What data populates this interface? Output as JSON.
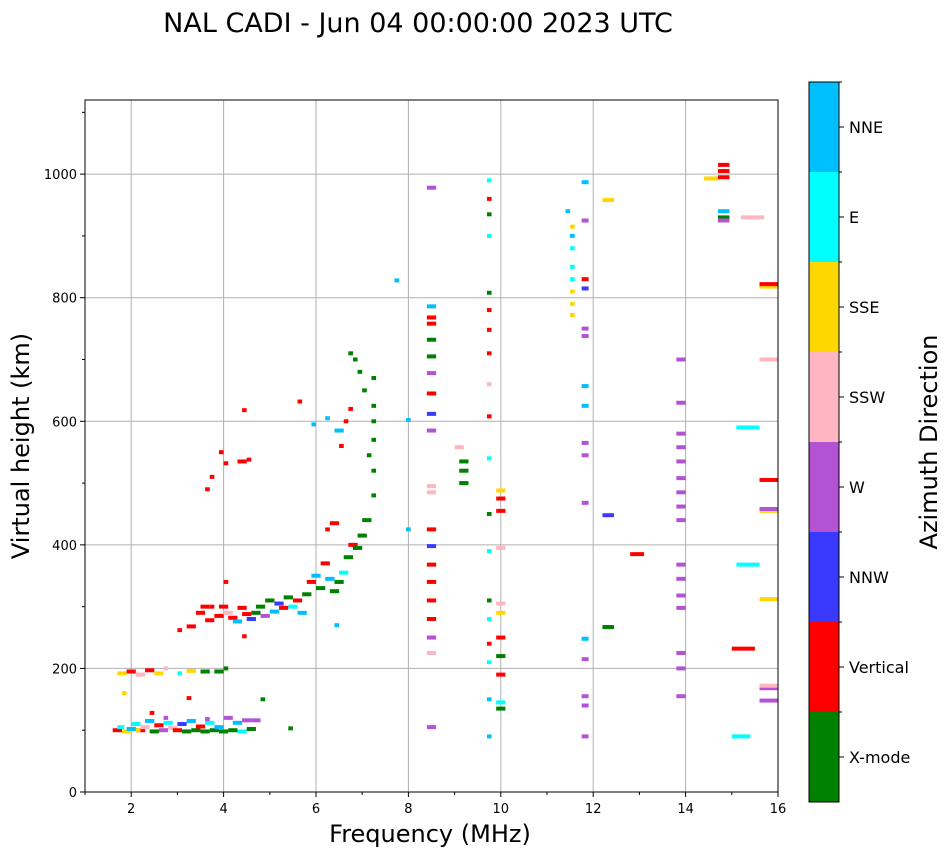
{
  "chart_data": {
    "type": "scatter",
    "title": "NAL CADI - Jun 04 00:00:00 2023 UTC",
    "xlabel": "Frequency (MHz)",
    "ylabel": "Virtual height (km)",
    "xlim": [
      1,
      16
    ],
    "ylim": [
      0,
      1120
    ],
    "xticks": [
      2,
      4,
      6,
      8,
      10,
      12,
      14,
      16
    ],
    "yticks": [
      0,
      200,
      400,
      600,
      800,
      1000
    ],
    "grid": true,
    "colorbar": {
      "label": "Azimuth Direction",
      "categories": [
        "X-mode",
        "Vertical",
        "NNW",
        "W",
        "SSW",
        "SSE",
        "E",
        "NNE"
      ],
      "colors": [
        "#008000",
        "#ff0000",
        "#3a3aff",
        "#b452d4",
        "#ffb6c1",
        "#ffd700",
        "#00ffff",
        "#00bfff"
      ]
    },
    "point_format": [
      "freq_start_MHz",
      "freq_end_MHz",
      "height_km",
      "category_index"
    ],
    "points": [
      [
        1.6,
        1.8,
        100,
        1
      ],
      [
        1.7,
        1.85,
        105,
        6
      ],
      [
        1.8,
        2.0,
        98,
        5
      ],
      [
        1.9,
        2.1,
        102,
        7
      ],
      [
        2.0,
        2.2,
        110,
        6
      ],
      [
        2.1,
        2.3,
        100,
        1
      ],
      [
        2.2,
        2.4,
        105,
        4
      ],
      [
        2.3,
        2.5,
        115,
        7
      ],
      [
        2.4,
        2.6,
        98,
        0
      ],
      [
        2.5,
        2.7,
        108,
        1
      ],
      [
        2.6,
        2.8,
        100,
        3
      ],
      [
        2.7,
        2.9,
        112,
        6
      ],
      [
        2.8,
        3.0,
        104,
        4
      ],
      [
        2.9,
        3.1,
        100,
        1
      ],
      [
        3.0,
        3.2,
        110,
        2
      ],
      [
        3.1,
        3.3,
        98,
        0
      ],
      [
        3.2,
        3.4,
        115,
        7
      ],
      [
        3.3,
        3.5,
        100,
        0
      ],
      [
        3.4,
        3.6,
        106,
        1
      ],
      [
        3.5,
        3.7,
        98,
        0
      ],
      [
        3.6,
        3.8,
        112,
        6
      ],
      [
        3.7,
        3.9,
        100,
        0
      ],
      [
        3.8,
        4.0,
        105,
        7
      ],
      [
        3.9,
        4.1,
        98,
        0
      ],
      [
        4.0,
        4.2,
        120,
        3
      ],
      [
        4.1,
        4.3,
        100,
        0
      ],
      [
        4.2,
        4.4,
        112,
        7
      ],
      [
        4.3,
        4.5,
        98,
        6
      ],
      [
        4.4,
        4.6,
        116,
        3
      ],
      [
        4.5,
        4.7,
        102,
        0
      ],
      [
        4.6,
        4.8,
        116,
        3
      ],
      [
        5.4,
        5.5,
        103,
        0
      ],
      [
        2.4,
        2.5,
        128,
        1
      ],
      [
        2.7,
        2.8,
        120,
        3
      ],
      [
        3.2,
        3.3,
        152,
        1
      ],
      [
        3.6,
        3.7,
        118,
        3
      ],
      [
        4.8,
        4.9,
        150,
        0
      ],
      [
        2.1,
        2.2,
        100,
        5
      ],
      [
        1.8,
        1.9,
        160,
        5
      ],
      [
        1.7,
        1.9,
        192,
        5
      ],
      [
        1.9,
        2.1,
        195,
        1
      ],
      [
        2.1,
        2.3,
        190,
        4
      ],
      [
        2.3,
        2.5,
        197,
        1
      ],
      [
        2.5,
        2.7,
        192,
        5
      ],
      [
        2.7,
        2.8,
        200,
        4
      ],
      [
        3.0,
        3.1,
        192,
        6
      ],
      [
        3.2,
        3.4,
        196,
        5
      ],
      [
        3.5,
        3.7,
        195,
        0
      ],
      [
        3.8,
        4.0,
        195,
        0
      ],
      [
        4.0,
        4.1,
        200,
        0
      ],
      [
        3.0,
        3.1,
        262,
        1
      ],
      [
        3.2,
        3.4,
        268,
        1
      ],
      [
        3.4,
        3.6,
        290,
        1
      ],
      [
        3.5,
        3.7,
        300,
        1
      ],
      [
        3.6,
        3.8,
        278,
        1
      ],
      [
        3.8,
        4.0,
        285,
        1
      ],
      [
        3.9,
        4.1,
        300,
        1
      ],
      [
        4.0,
        4.2,
        290,
        4
      ],
      [
        4.1,
        4.3,
        282,
        1
      ],
      [
        4.2,
        4.4,
        276,
        7
      ],
      [
        4.3,
        4.5,
        298,
        1
      ],
      [
        4.4,
        4.6,
        288,
        1
      ],
      [
        4.5,
        4.7,
        280,
        2
      ],
      [
        4.6,
        4.8,
        290,
        0
      ],
      [
        4.7,
        4.9,
        300,
        0
      ],
      [
        4.8,
        5.0,
        285,
        3
      ],
      [
        4.9,
        5.1,
        310,
        0
      ],
      [
        5.0,
        5.2,
        292,
        7
      ],
      [
        5.1,
        5.3,
        305,
        2
      ],
      [
        5.2,
        5.4,
        298,
        1
      ],
      [
        5.3,
        5.5,
        315,
        0
      ],
      [
        5.4,
        5.6,
        300,
        6
      ],
      [
        5.5,
        5.7,
        310,
        1
      ],
      [
        5.6,
        5.8,
        290,
        7
      ],
      [
        5.7,
        5.9,
        320,
        0
      ],
      [
        5.8,
        6.0,
        340,
        1
      ],
      [
        5.9,
        6.1,
        350,
        7
      ],
      [
        6.0,
        6.2,
        330,
        0
      ],
      [
        6.1,
        6.3,
        370,
        1
      ],
      [
        6.2,
        6.4,
        345,
        7
      ],
      [
        6.3,
        6.5,
        325,
        0
      ],
      [
        6.4,
        6.6,
        340,
        0
      ],
      [
        6.5,
        6.7,
        355,
        6
      ],
      [
        6.6,
        6.8,
        380,
        0
      ],
      [
        6.7,
        6.9,
        400,
        1
      ],
      [
        6.2,
        6.3,
        425,
        1
      ],
      [
        6.3,
        6.5,
        435,
        1
      ],
      [
        6.8,
        7.0,
        395,
        0
      ],
      [
        6.9,
        7.1,
        415,
        0
      ],
      [
        7.0,
        7.2,
        440,
        0
      ],
      [
        4.0,
        4.1,
        340,
        1
      ],
      [
        3.7,
        3.8,
        300,
        1
      ],
      [
        4.4,
        4.5,
        252,
        1
      ],
      [
        6.4,
        6.5,
        270,
        7
      ],
      [
        7.2,
        7.3,
        480,
        0
      ],
      [
        7.2,
        7.3,
        520,
        0
      ],
      [
        7.1,
        7.2,
        545,
        0
      ],
      [
        7.2,
        7.3,
        570,
        0
      ],
      [
        7.2,
        7.3,
        600,
        0
      ],
      [
        7.2,
        7.3,
        625,
        0
      ],
      [
        7.2,
        7.3,
        670,
        0
      ],
      [
        7.0,
        7.1,
        650,
        0
      ],
      [
        6.8,
        6.9,
        700,
        0
      ],
      [
        6.9,
        7.0,
        680,
        0
      ],
      [
        6.7,
        6.8,
        620,
        1
      ],
      [
        6.6,
        6.7,
        600,
        1
      ],
      [
        6.5,
        6.6,
        560,
        1
      ],
      [
        6.4,
        6.6,
        585,
        7
      ],
      [
        6.2,
        6.3,
        605,
        7
      ],
      [
        5.9,
        6.0,
        595,
        7
      ],
      [
        5.6,
        5.7,
        632,
        1
      ],
      [
        6.7,
        6.8,
        710,
        0
      ],
      [
        7.7,
        7.8,
        828,
        7
      ],
      [
        3.6,
        3.7,
        490,
        1
      ],
      [
        3.7,
        3.8,
        510,
        1
      ],
      [
        3.9,
        4.0,
        550,
        1
      ],
      [
        4.0,
        4.1,
        532,
        1
      ],
      [
        4.3,
        4.5,
        535,
        1
      ],
      [
        4.5,
        4.6,
        538,
        1
      ],
      [
        4.4,
        4.5,
        618,
        1
      ],
      [
        8.4,
        8.6,
        105,
        3
      ],
      [
        8.4,
        8.6,
        225,
        4
      ],
      [
        8.4,
        8.6,
        250,
        3
      ],
      [
        8.4,
        8.6,
        280,
        1
      ],
      [
        8.4,
        8.6,
        310,
        1
      ],
      [
        8.4,
        8.6,
        340,
        1
      ],
      [
        8.4,
        8.6,
        368,
        1
      ],
      [
        8.4,
        8.6,
        398,
        2
      ],
      [
        8.4,
        8.6,
        425,
        1
      ],
      [
        8.4,
        8.6,
        485,
        4
      ],
      [
        8.4,
        8.6,
        495,
        4
      ],
      [
        8.4,
        8.6,
        585,
        3
      ],
      [
        8.4,
        8.6,
        612,
        2
      ],
      [
        8.4,
        8.6,
        645,
        1
      ],
      [
        8.4,
        8.6,
        678,
        3
      ],
      [
        8.4,
        8.6,
        705,
        0
      ],
      [
        8.4,
        8.6,
        732,
        0
      ],
      [
        8.4,
        8.6,
        758,
        1
      ],
      [
        8.4,
        8.6,
        768,
        1
      ],
      [
        8.4,
        8.6,
        786,
        7
      ],
      [
        8.4,
        8.6,
        978,
        3
      ],
      [
        7.95,
        8.05,
        425,
        7
      ],
      [
        7.95,
        8.05,
        602,
        7
      ],
      [
        9.1,
        9.3,
        500,
        0
      ],
      [
        9.1,
        9.3,
        520,
        0
      ],
      [
        9.1,
        9.3,
        535,
        0
      ],
      [
        9.0,
        9.2,
        558,
        4
      ],
      [
        9.7,
        9.8,
        90,
        7
      ],
      [
        9.7,
        9.8,
        150,
        7
      ],
      [
        9.7,
        9.8,
        210,
        6
      ],
      [
        9.7,
        9.8,
        240,
        1
      ],
      [
        9.7,
        9.8,
        280,
        6
      ],
      [
        9.7,
        9.8,
        310,
        0
      ],
      [
        9.7,
        9.8,
        390,
        6
      ],
      [
        9.7,
        9.8,
        450,
        0
      ],
      [
        9.7,
        9.8,
        540,
        6
      ],
      [
        9.7,
        9.8,
        608,
        1
      ],
      [
        9.7,
        9.8,
        660,
        4
      ],
      [
        9.7,
        9.8,
        710,
        1
      ],
      [
        9.7,
        9.8,
        748,
        1
      ],
      [
        9.7,
        9.8,
        780,
        1
      ],
      [
        9.7,
        9.8,
        808,
        0
      ],
      [
        9.7,
        9.8,
        900,
        6
      ],
      [
        9.7,
        9.8,
        935,
        0
      ],
      [
        9.7,
        9.8,
        960,
        1
      ],
      [
        9.7,
        9.8,
        990,
        6
      ],
      [
        9.9,
        10.1,
        135,
        0
      ],
      [
        9.9,
        10.1,
        145,
        6
      ],
      [
        9.9,
        10.1,
        190,
        1
      ],
      [
        9.9,
        10.1,
        220,
        0
      ],
      [
        9.9,
        10.1,
        250,
        1
      ],
      [
        9.9,
        10.1,
        290,
        5
      ],
      [
        9.9,
        10.1,
        305,
        4
      ],
      [
        9.9,
        10.1,
        455,
        1
      ],
      [
        9.9,
        10.1,
        475,
        1
      ],
      [
        9.9,
        10.1,
        488,
        5
      ],
      [
        9.9,
        10.1,
        395,
        4
      ],
      [
        11.4,
        11.5,
        940,
        7
      ],
      [
        11.5,
        11.6,
        915,
        5
      ],
      [
        11.5,
        11.6,
        880,
        6
      ],
      [
        11.5,
        11.6,
        850,
        6
      ],
      [
        11.5,
        11.6,
        830,
        6
      ],
      [
        11.5,
        11.6,
        810,
        5
      ],
      [
        11.5,
        11.6,
        790,
        5
      ],
      [
        11.5,
        11.6,
        772,
        5
      ],
      [
        11.5,
        11.6,
        900,
        7
      ],
      [
        11.75,
        11.9,
        90,
        3
      ],
      [
        11.75,
        11.9,
        140,
        3
      ],
      [
        11.75,
        11.9,
        155,
        3
      ],
      [
        11.75,
        11.9,
        215,
        3
      ],
      [
        11.75,
        11.9,
        248,
        7
      ],
      [
        11.75,
        11.9,
        468,
        3
      ],
      [
        11.75,
        11.9,
        545,
        3
      ],
      [
        11.75,
        11.9,
        565,
        3
      ],
      [
        11.75,
        11.9,
        625,
        7
      ],
      [
        11.75,
        11.9,
        657,
        7
      ],
      [
        11.75,
        11.9,
        738,
        3
      ],
      [
        11.75,
        11.9,
        750,
        3
      ],
      [
        11.75,
        11.9,
        815,
        2
      ],
      [
        11.75,
        11.9,
        830,
        1
      ],
      [
        11.75,
        11.9,
        925,
        3
      ],
      [
        11.75,
        11.9,
        987,
        7
      ],
      [
        12.2,
        12.45,
        448,
        2
      ],
      [
        12.2,
        12.45,
        958,
        5
      ],
      [
        12.8,
        13.1,
        385,
        1
      ],
      [
        12.2,
        12.45,
        267,
        0
      ],
      [
        13.8,
        14.0,
        155,
        3
      ],
      [
        13.8,
        14.0,
        200,
        3
      ],
      [
        13.8,
        14.0,
        225,
        3
      ],
      [
        13.8,
        14.0,
        298,
        3
      ],
      [
        13.8,
        14.0,
        318,
        3
      ],
      [
        13.8,
        14.0,
        345,
        3
      ],
      [
        13.8,
        14.0,
        368,
        3
      ],
      [
        13.8,
        14.0,
        440,
        3
      ],
      [
        13.8,
        14.0,
        462,
        3
      ],
      [
        13.8,
        14.0,
        485,
        3
      ],
      [
        13.8,
        14.0,
        508,
        3
      ],
      [
        13.8,
        14.0,
        535,
        3
      ],
      [
        13.8,
        14.0,
        558,
        3
      ],
      [
        13.8,
        14.0,
        580,
        3
      ],
      [
        13.8,
        14.0,
        630,
        3
      ],
      [
        13.8,
        14.0,
        700,
        3
      ],
      [
        14.4,
        14.7,
        993,
        5
      ],
      [
        14.7,
        14.95,
        995,
        1
      ],
      [
        14.7,
        14.95,
        1005,
        1
      ],
      [
        14.7,
        14.95,
        1015,
        1
      ],
      [
        14.7,
        14.95,
        940,
        7
      ],
      [
        14.7,
        14.95,
        930,
        0
      ],
      [
        14.7,
        14.95,
        925,
        3
      ],
      [
        15.2,
        15.7,
        930,
        4
      ],
      [
        15.0,
        15.4,
        90,
        6
      ],
      [
        15.0,
        15.5,
        232,
        1
      ],
      [
        15.1,
        15.6,
        368,
        6
      ],
      [
        15.1,
        15.6,
        590,
        6
      ],
      [
        15.6,
        16,
        148,
        3
      ],
      [
        15.6,
        16,
        168,
        3
      ],
      [
        15.6,
        16,
        172,
        4
      ],
      [
        15.6,
        16,
        312,
        5
      ],
      [
        15.6,
        16,
        455,
        5
      ],
      [
        15.6,
        16,
        458,
        3
      ],
      [
        15.6,
        16,
        505,
        1
      ],
      [
        15.6,
        16,
        700,
        4
      ],
      [
        15.6,
        16,
        818,
        5
      ],
      [
        15.6,
        16,
        822,
        1
      ]
    ]
  }
}
